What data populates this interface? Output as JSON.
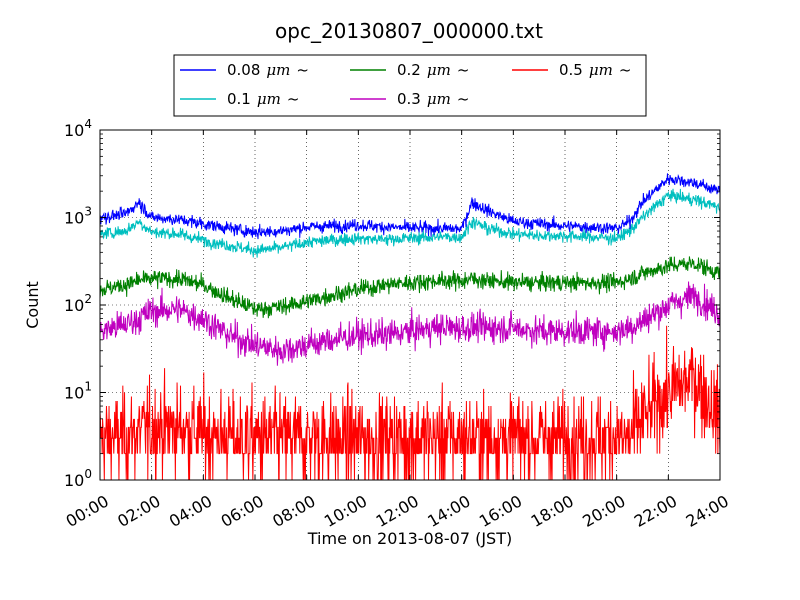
{
  "chart_data": {
    "type": "line",
    "title": "opc_20130807_000000.txt",
    "xlabel": "Time on 2013-08-07 (JST)",
    "ylabel": "Count",
    "yscale": "log",
    "ylim": [
      1,
      10000
    ],
    "xlim": [
      "00:00",
      "24:00"
    ],
    "x_ticks": [
      "00:00",
      "02:00",
      "04:00",
      "06:00",
      "08:00",
      "10:00",
      "12:00",
      "14:00",
      "16:00",
      "18:00",
      "20:00",
      "22:00",
      "24:00"
    ],
    "y_ticks": [
      {
        "base": "10",
        "exp": "0"
      },
      {
        "base": "10",
        "exp": "1"
      },
      {
        "base": "10",
        "exp": "2"
      },
      {
        "base": "10",
        "exp": "3"
      },
      {
        "base": "10",
        "exp": "4"
      }
    ],
    "grid": true,
    "legend_position": "top",
    "x_hours": [
      0,
      1,
      1.5,
      2,
      3,
      4,
      5,
      6,
      7,
      8,
      9,
      10,
      11,
      12,
      13,
      14,
      14.4,
      15,
      16,
      17,
      18,
      19,
      20,
      20.5,
      21,
      22,
      23,
      24
    ],
    "series": [
      {
        "name": "0.08",
        "unit": "μm",
        "suffix": "~",
        "color": "#0000ff",
        "noise": 0.05,
        "values": [
          1000,
          1100,
          1500,
          1000,
          950,
          850,
          750,
          680,
          700,
          780,
          800,
          820,
          780,
          760,
          750,
          740,
          1500,
          1200,
          900,
          850,
          800,
          780,
          750,
          900,
          1500,
          2800,
          2500,
          2000
        ]
      },
      {
        "name": "0.1",
        "unit": "μm",
        "suffix": "~",
        "color": "#00bfbf",
        "noise": 0.05,
        "values": [
          650,
          700,
          900,
          680,
          650,
          550,
          480,
          420,
          450,
          520,
          550,
          580,
          560,
          580,
          600,
          600,
          900,
          750,
          650,
          620,
          620,
          600,
          580,
          700,
          1000,
          1800,
          1600,
          1300
        ]
      },
      {
        "name": "0.2",
        "unit": "μm",
        "suffix": "~",
        "color": "#008000",
        "noise": 0.07,
        "values": [
          150,
          170,
          190,
          200,
          200,
          170,
          120,
          90,
          95,
          110,
          130,
          150,
          170,
          180,
          190,
          190,
          200,
          190,
          180,
          180,
          180,
          180,
          180,
          200,
          230,
          280,
          300,
          230
        ]
      },
      {
        "name": "0.3",
        "unit": "μm",
        "suffix": "~",
        "color": "#bf00bf",
        "noise": 0.12,
        "values": [
          50,
          60,
          70,
          85,
          90,
          70,
          45,
          35,
          30,
          35,
          40,
          45,
          45,
          50,
          55,
          55,
          55,
          55,
          55,
          50,
          50,
          50,
          50,
          55,
          65,
          100,
          130,
          80
        ]
      },
      {
        "name": "0.5",
        "unit": "μm",
        "suffix": "~",
        "color": "#ff0000",
        "noise": 0.35,
        "values": [
          3,
          3,
          3.5,
          4,
          4,
          3.5,
          3,
          3,
          3,
          3,
          3,
          3,
          3,
          3,
          3,
          3,
          3,
          3,
          3,
          3,
          3,
          3,
          3,
          3,
          5,
          10,
          15,
          5
        ]
      }
    ]
  }
}
